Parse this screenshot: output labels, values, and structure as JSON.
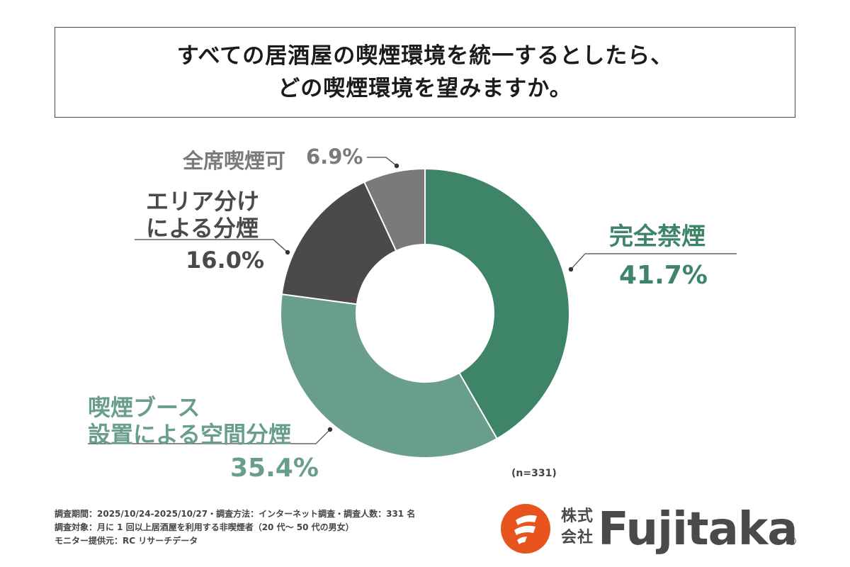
{
  "title": {
    "line1": "すべての居酒屋の喫煙環境を統一するとしたら、",
    "line2": "どの喫煙環境を望みますか。"
  },
  "chart_data": {
    "type": "pie",
    "donut": true,
    "categories": [
      "完全禁煙",
      "喫煙ブース設置による空間分煙",
      "エリア分けによる分煙",
      "全席喫煙可"
    ],
    "values": [
      41.7,
      35.4,
      16.0,
      6.9
    ],
    "unit": "%",
    "colors": [
      "#3d8469",
      "#6a9e8c",
      "#4b494c",
      "#7b797b"
    ],
    "n_note": "(n=331)"
  },
  "labels": {
    "full_ban_name": "完全禁煙",
    "full_ban_value": "41.7%",
    "booth_line1": "喫煙ブース",
    "booth_line2": "設置による空間分煙",
    "booth_value": "35.4%",
    "area_line1": "エリア分け",
    "area_line2": "による分煙",
    "area_value": "16.0%",
    "all_name": "全席喫煙可",
    "all_value": "6.9%"
  },
  "footer": {
    "line1": "調査期間：2025/10/24-2025/10/27・調査方法：インターネット調査・調査人数：331 名",
    "line2": "調査対象：月に 1 回以上居酒屋を利用する非喫煙者（20 代〜 50 代の男女）",
    "line3": "モニター提供元：RC リサーチデータ"
  },
  "logo": {
    "kabushiki": "株式",
    "kaisha": "会社",
    "brand": "Fujitaka",
    "registered": "®",
    "mark_color": "#e8541e"
  }
}
